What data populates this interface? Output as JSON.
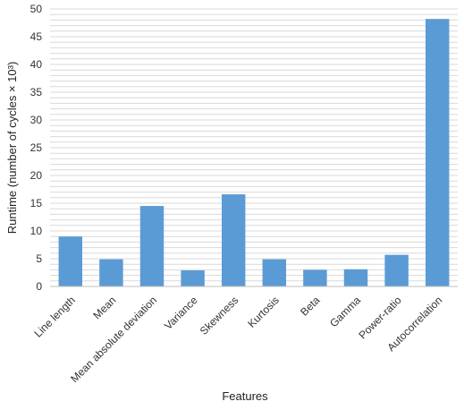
{
  "chart_data": {
    "type": "bar",
    "categories": [
      "Line length",
      "Mean",
      "Mean absolute deviation",
      "Variance",
      "Skewness",
      "Kurtosis",
      "Beta",
      "Gamma",
      "Power-ratio",
      "Autocorrelation"
    ],
    "values": [
      9,
      4.9,
      14.5,
      2.9,
      16.6,
      4.9,
      3,
      3.1,
      5.7,
      48.2
    ],
    "title": "",
    "xlabel": "Features",
    "ylabel": "Runtime (number of cycles × 10³)",
    "ylim": [
      0,
      50
    ],
    "yticks": [
      0,
      5,
      10,
      15,
      20,
      25,
      30,
      35,
      40,
      45,
      50
    ],
    "grid": true,
    "legend": "none",
    "bar_color": "#5b9bd5"
  }
}
